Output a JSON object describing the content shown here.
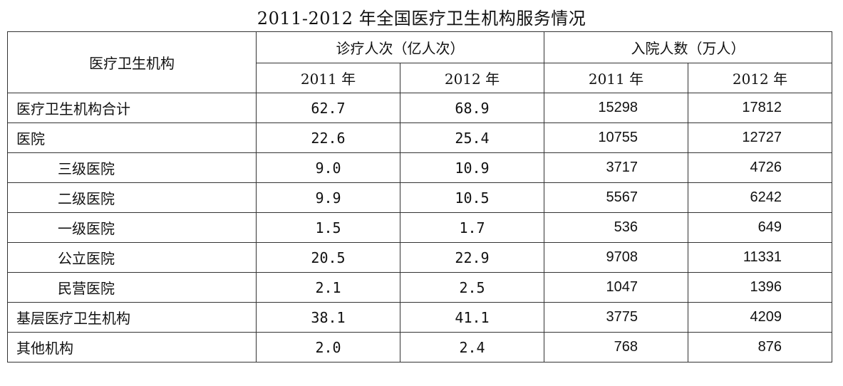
{
  "title": "2011-2012 年全国医疗卫生机构服务情况",
  "header": {
    "org_label": "医疗卫生机构",
    "group1": "诊疗人次（亿人次）",
    "group2": "入院人数（万人）",
    "years": [
      "2011 年",
      "2012 年",
      "2011 年",
      "2012 年"
    ]
  },
  "rows": [
    {
      "name": "医疗卫生机构合计",
      "indent": false,
      "v": [
        "62.7",
        "68.9",
        "15298",
        "17812"
      ]
    },
    {
      "name": "医院",
      "indent": false,
      "v": [
        "22.6",
        "25.4",
        "10755",
        "12727"
      ]
    },
    {
      "name": "三级医院",
      "indent": true,
      "v": [
        "9.0",
        "10.9",
        "3717",
        "4726"
      ]
    },
    {
      "name": "二级医院",
      "indent": true,
      "v": [
        "9.9",
        "10.5",
        "5567",
        "6242"
      ]
    },
    {
      "name": "一级医院",
      "indent": true,
      "v": [
        "1.5",
        "1.7",
        "536",
        "649"
      ]
    },
    {
      "name": "公立医院",
      "indent": true,
      "v": [
        "20.5",
        "22.9",
        "9708",
        "11331"
      ]
    },
    {
      "name": "民营医院",
      "indent": true,
      "v": [
        "2.1",
        "2.5",
        "1047",
        "1396"
      ]
    },
    {
      "name": "基层医疗卫生机构",
      "indent": false,
      "v": [
        "38.1",
        "41.1",
        "3775",
        "4209"
      ]
    },
    {
      "name": "其他机构",
      "indent": false,
      "v": [
        "2.0",
        "2.4",
        "768",
        "876"
      ]
    }
  ]
}
